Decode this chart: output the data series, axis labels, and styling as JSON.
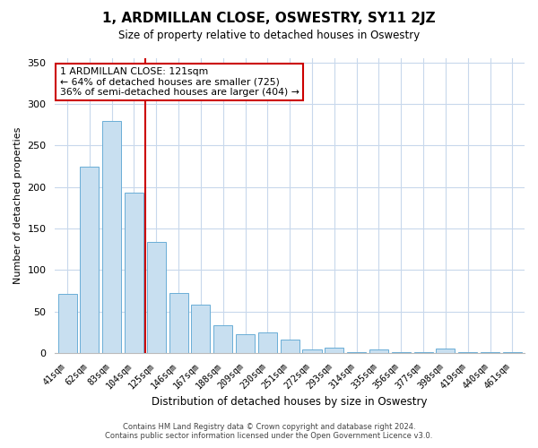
{
  "title": "1, ARDMILLAN CLOSE, OSWESTRY, SY11 2JZ",
  "subtitle": "Size of property relative to detached houses in Oswestry",
  "xlabel": "Distribution of detached houses by size in Oswestry",
  "ylabel": "Number of detached properties",
  "bar_labels": [
    "41sqm",
    "62sqm",
    "83sqm",
    "104sqm",
    "125sqm",
    "146sqm",
    "167sqm",
    "188sqm",
    "209sqm",
    "230sqm",
    "251sqm",
    "272sqm",
    "293sqm",
    "314sqm",
    "335sqm",
    "356sqm",
    "377sqm",
    "398sqm",
    "419sqm",
    "440sqm",
    "461sqm"
  ],
  "bar_values": [
    71,
    224,
    280,
    193,
    134,
    73,
    58,
    34,
    23,
    25,
    16,
    5,
    7,
    1,
    5,
    1,
    1,
    6,
    1,
    1,
    1
  ],
  "bar_color": "#c8dff0",
  "bar_edge_color": "#6aaed6",
  "vline_color": "#cc0000",
  "vline_x": 3.5,
  "annotation_text": "1 ARDMILLAN CLOSE: 121sqm\n← 64% of detached houses are smaller (725)\n36% of semi-detached houses are larger (404) →",
  "annotation_box_color": "#ffffff",
  "annotation_box_edge_color": "#cc0000",
  "ylim": [
    0,
    355
  ],
  "yticks": [
    0,
    50,
    100,
    150,
    200,
    250,
    300,
    350
  ],
  "footer_line1": "Contains HM Land Registry data © Crown copyright and database right 2024.",
  "footer_line2": "Contains public sector information licensed under the Open Government Licence v3.0.",
  "background_color": "#ffffff",
  "grid_color": "#c8d8ec"
}
